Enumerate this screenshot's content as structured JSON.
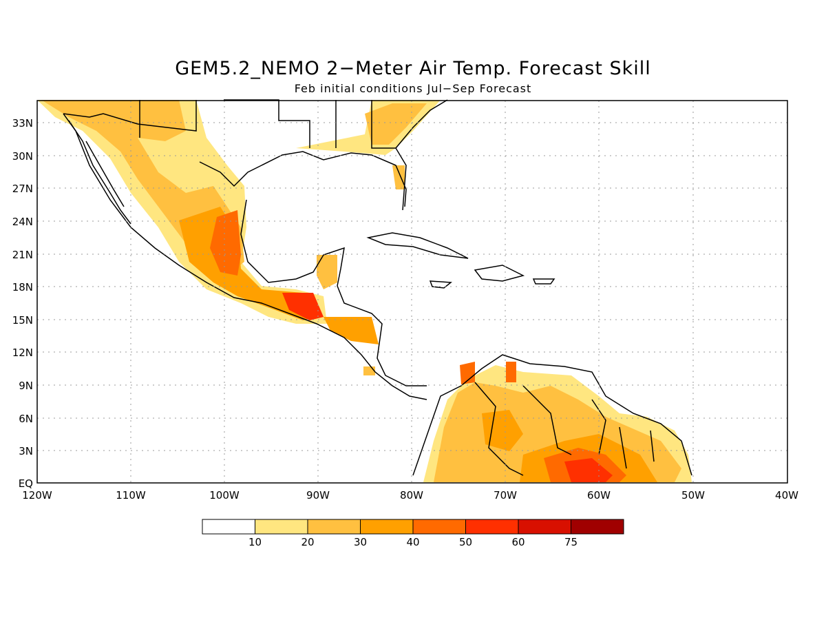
{
  "map": {
    "title": "GEM5.2_NEMO 2−Meter Air Temp. Forecast Skill",
    "subtitle": "Feb initial conditions  Jul−Sep Forecast",
    "lon_labels": [
      "120W",
      "110W",
      "100W",
      "90W",
      "80W",
      "70W",
      "60W",
      "50W",
      "40W"
    ],
    "lat_labels": [
      "EQ",
      "3N",
      "6N",
      "9N",
      "12N",
      "15N",
      "18N",
      "21N",
      "24N",
      "27N",
      "30N",
      "33N"
    ],
    "grid": true
  },
  "legend": {
    "colors": [
      "#ffffff",
      "#ffe680",
      "#ffc040",
      "#ffa000",
      "#ff6a00",
      "#ff3000",
      "#d81000",
      "#a00000"
    ],
    "labels": [
      "10",
      "20",
      "30",
      "40",
      "50",
      "60",
      "75"
    ]
  }
}
